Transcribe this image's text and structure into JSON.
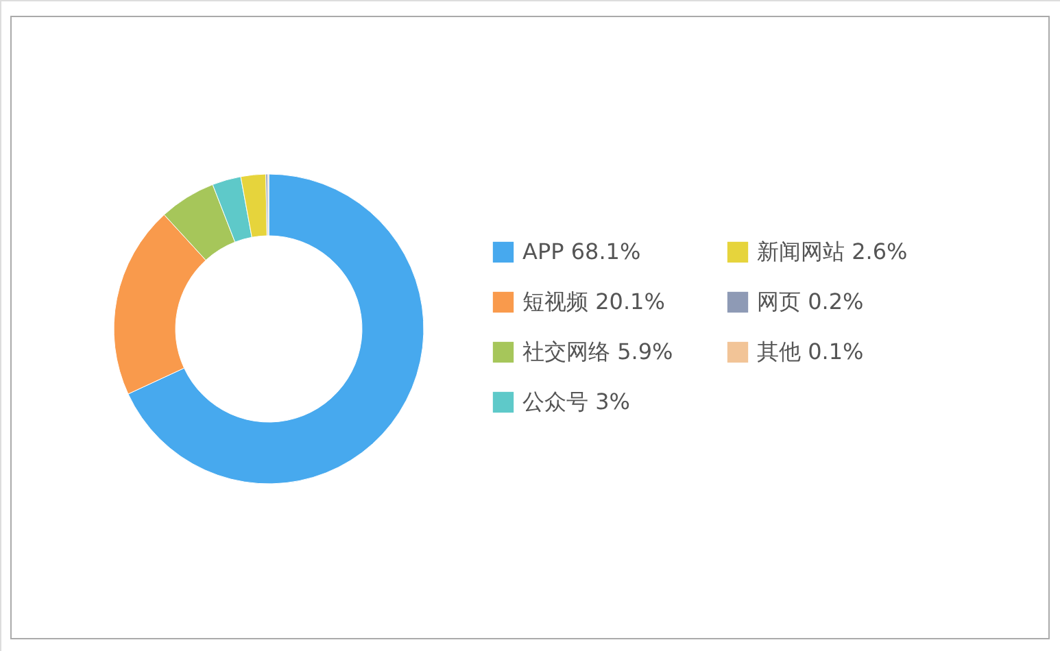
{
  "chart_data": {
    "type": "donut",
    "categories": [
      "APP",
      "短视频",
      "社交网络",
      "公众号",
      "新闻网站",
      "网页",
      "其他"
    ],
    "values": [
      68.1,
      20.1,
      5.9,
      3,
      2.6,
      0.2,
      0.1
    ],
    "value_labels": [
      "68.1%",
      "20.1%",
      "5.9%",
      "3%",
      "2.6%",
      "0.2%",
      "0.1%"
    ],
    "colors": [
      "#47a9ee",
      "#f99a4c",
      "#a6c65a",
      "#5ec9c9",
      "#e6d43c",
      "#8e9ab5",
      "#f2c497"
    ],
    "legend": "right"
  }
}
